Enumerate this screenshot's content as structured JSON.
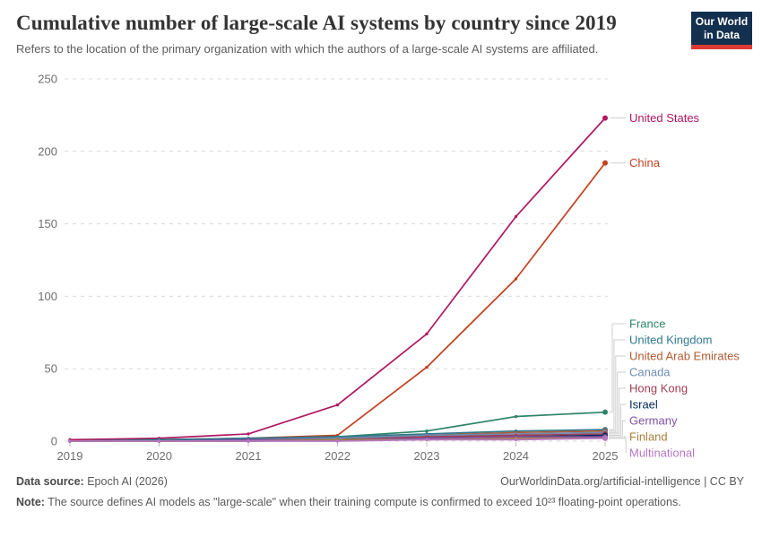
{
  "header": {
    "title": "Cumulative number of large-scale AI systems by country since 2019",
    "subtitle": "Refers to the location of the primary organization with which the authors of a large-scale AI systems are affiliated.",
    "logo": {
      "line1": "Our World",
      "line2": "in Data"
    }
  },
  "chart_data": {
    "type": "line",
    "title": "Cumulative number of large-scale AI systems by country since 2019",
    "x": [
      2019,
      2020,
      2021,
      2022,
      2023,
      2024,
      2025
    ],
    "xlabel": "",
    "ylabel": "",
    "ylim": [
      0,
      250
    ],
    "yticks": [
      0,
      50,
      100,
      150,
      200,
      250
    ],
    "grid": "horizontal-dashed",
    "legend_position": "right-of-lines",
    "series": [
      {
        "name": "United States",
        "color": "#B01862",
        "values": [
          1,
          2,
          5,
          25,
          74,
          155,
          223
        ]
      },
      {
        "name": "China",
        "color": "#C2401F",
        "values": [
          0,
          1,
          2,
          4,
          51,
          112,
          192
        ]
      },
      {
        "name": "France",
        "color": "#2C8465",
        "values": [
          0,
          0,
          1,
          3,
          7,
          17,
          20
        ]
      },
      {
        "name": "United Kingdom",
        "color": "#2D7A8E",
        "values": [
          0,
          1,
          2,
          3,
          5,
          7,
          8
        ]
      },
      {
        "name": "United Arab Emirates",
        "color": "#B05A33",
        "values": [
          0,
          0,
          1,
          2,
          4,
          6,
          7
        ]
      },
      {
        "name": "Canada",
        "color": "#6D8CB3",
        "values": [
          0,
          0,
          1,
          2,
          4,
          5,
          6
        ]
      },
      {
        "name": "Hong Kong",
        "color": "#A23E52",
        "values": [
          0,
          0,
          0,
          1,
          3,
          4,
          5
        ]
      },
      {
        "name": "Israel",
        "color": "#00295B",
        "values": [
          0,
          0,
          1,
          1,
          2,
          3,
          4
        ]
      },
      {
        "name": "Germany",
        "color": "#8353A4",
        "values": [
          0,
          0,
          1,
          1,
          2,
          3,
          3
        ]
      },
      {
        "name": "Finland",
        "color": "#A87F3F",
        "values": [
          0,
          0,
          0,
          1,
          1,
          2,
          2
        ]
      },
      {
        "name": "Multinational",
        "color": "#B678C4",
        "values": [
          0,
          0,
          0,
          0,
          1,
          1,
          2
        ]
      }
    ]
  },
  "footer": {
    "source_label": "Data source:",
    "source_value": "Epoch AI (2026)",
    "rights": "OurWorldinData.org/artificial-intelligence | CC BY",
    "note_label": "Note:",
    "note_value": "The source defines AI models as \"large-scale\" when their training compute is confirmed to exceed 10²³ floating-point operations."
  }
}
